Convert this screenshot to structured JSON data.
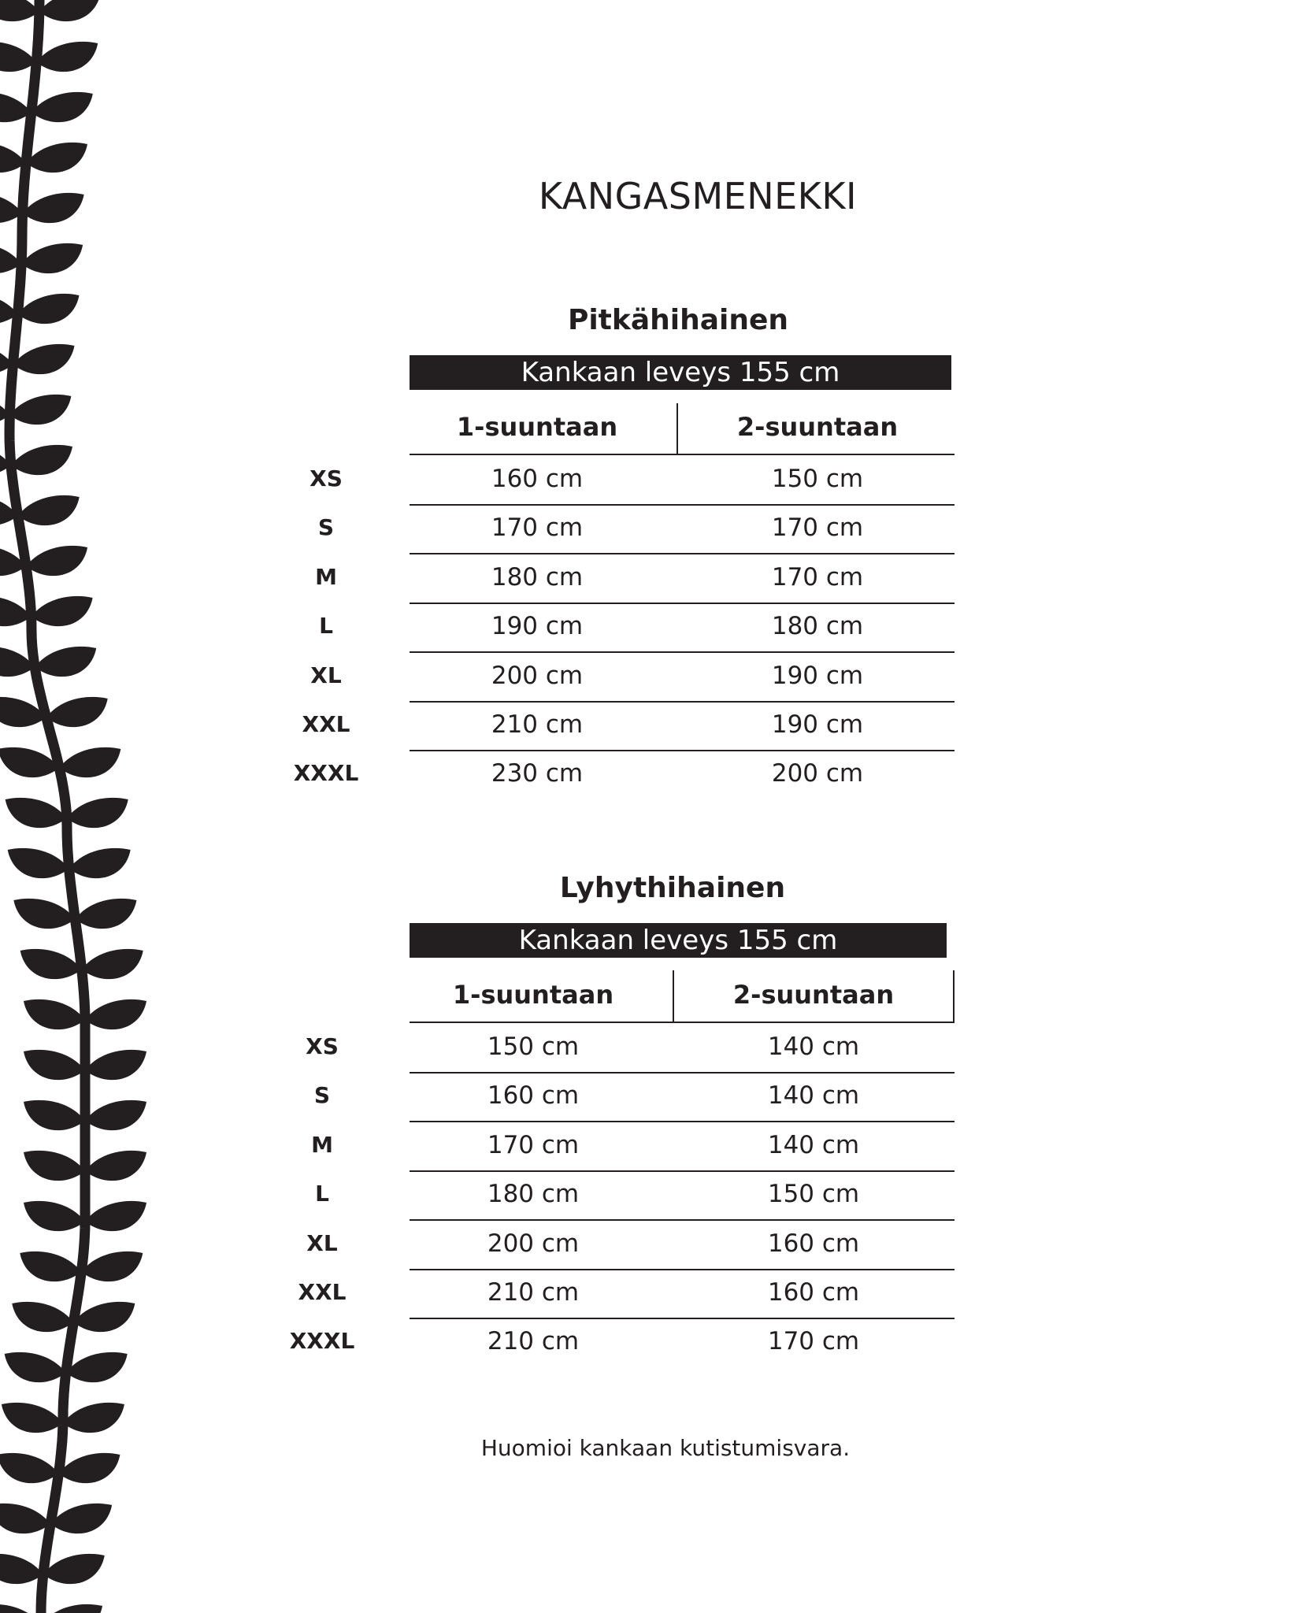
{
  "title": "KANGASMENEKKI",
  "tables": [
    {
      "subtitle": "Pitkähihainen",
      "fabric_width": "Kankaan leveys 155 cm",
      "col1": "1-suuntaan",
      "col2": "2-suuntaan",
      "rows": [
        {
          "size": "XS",
          "c1": "160 cm",
          "c2": "150 cm"
        },
        {
          "size": "S",
          "c1": "170 cm",
          "c2": "170 cm"
        },
        {
          "size": "M",
          "c1": "180 cm",
          "c2": "170 cm"
        },
        {
          "size": "L",
          "c1": "190 cm",
          "c2": "180 cm"
        },
        {
          "size": "XL",
          "c1": "200 cm",
          "c2": "190 cm"
        },
        {
          "size": "XXL",
          "c1": "210 cm",
          "c2": "190 cm"
        },
        {
          "size": "XXXL",
          "c1": "230 cm",
          "c2": "200 cm"
        }
      ]
    },
    {
      "subtitle": "Lyhythihainen",
      "fabric_width": "Kankaan leveys 155 cm",
      "col1": "1-suuntaan",
      "col2": "2-suuntaan",
      "rows": [
        {
          "size": "XS",
          "c1": "150 cm",
          "c2": "140 cm"
        },
        {
          "size": "S",
          "c1": "160 cm",
          "c2": "140 cm"
        },
        {
          "size": "M",
          "c1": "170 cm",
          "c2": "140 cm"
        },
        {
          "size": "L",
          "c1": "180 cm",
          "c2": "150 cm"
        },
        {
          "size": "XL",
          "c1": "200 cm",
          "c2": "160 cm"
        },
        {
          "size": "XXL",
          "c1": "210 cm",
          "c2": "160 cm"
        },
        {
          "size": "XXXL",
          "c1": "210 cm",
          "c2": "170 cm"
        }
      ]
    }
  ],
  "note": "Huomioi kankaan kutistumisvara.",
  "colors": {
    "ink": "#231f20",
    "background": "#ffffff"
  },
  "decoration": "leaf-vine-icon"
}
